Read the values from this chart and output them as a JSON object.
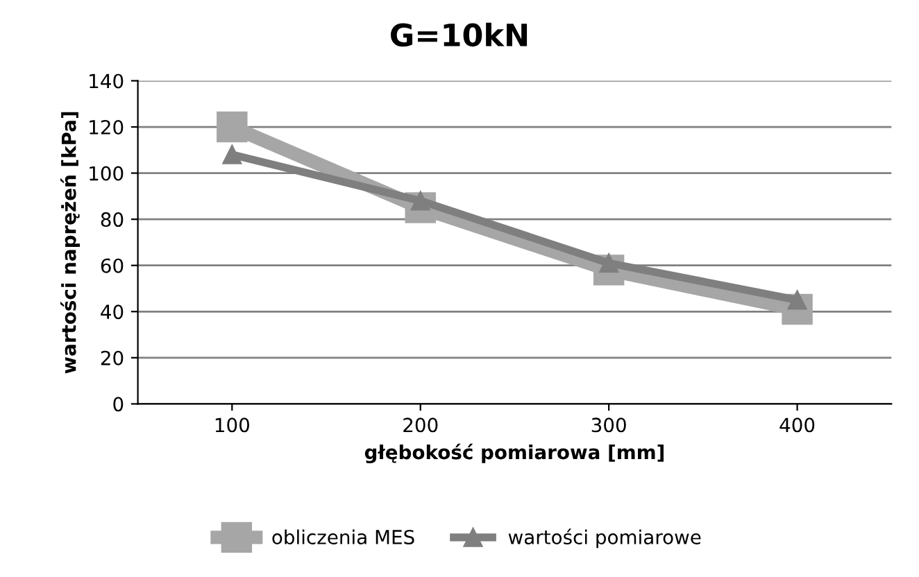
{
  "chart_data": {
    "type": "line",
    "title": "G=10kN",
    "xlabel": "głębokość pomiarowa [mm]",
    "ylabel": "wartości naprężeń [kPa]",
    "categories": [
      "100",
      "200",
      "300",
      "400"
    ],
    "series": [
      {
        "name": "obliczenia MES",
        "color": "#a6a6a6",
        "marker": "square",
        "values": [
          120,
          85,
          58,
          41
        ]
      },
      {
        "name": "wartości pomiarowe",
        "color": "#7f7f7f",
        "marker": "triangle",
        "values": [
          108,
          88,
          61,
          45
        ]
      }
    ],
    "ylim": [
      0,
      140
    ],
    "yticks": [
      0,
      20,
      40,
      60,
      80,
      100,
      120,
      140
    ],
    "grid": "y",
    "legend": "bottom"
  }
}
